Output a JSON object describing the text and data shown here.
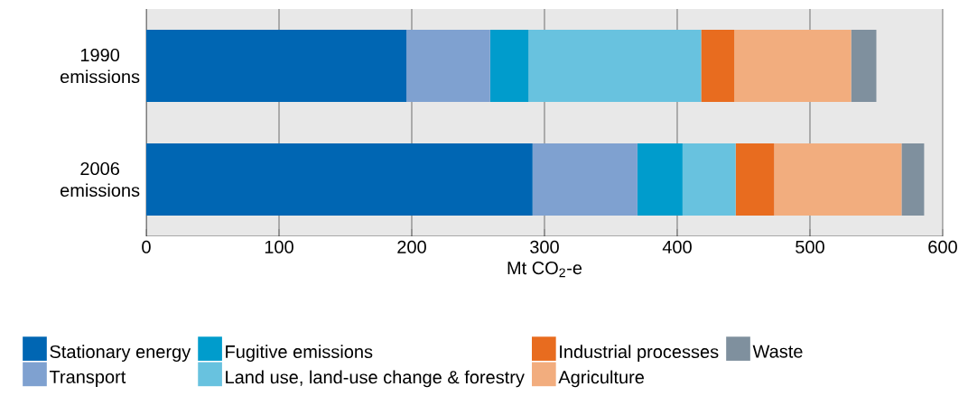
{
  "chart_data": {
    "type": "bar",
    "orientation": "horizontal",
    "stacked": true,
    "categories": [
      "1990 emissions",
      "2006 emissions"
    ],
    "series": [
      {
        "name": "Stationary energy",
        "color": "#0066b3",
        "values": [
          196,
          291
        ]
      },
      {
        "name": "Transport",
        "color": "#7fa1d0",
        "values": [
          63,
          79
        ]
      },
      {
        "name": "Fugitive emissions",
        "color": "#009ccc",
        "values": [
          29,
          34
        ]
      },
      {
        "name": "Land use, land-use change & forestry",
        "color": "#68c2df",
        "values": [
          130,
          40
        ]
      },
      {
        "name": "Industrial processes",
        "color": "#e86c1f",
        "values": [
          25,
          29
        ]
      },
      {
        "name": "Agriculture",
        "color": "#f2ad7e",
        "values": [
          88,
          96
        ]
      },
      {
        "name": "Waste",
        "color": "#7f909e",
        "values": [
          19,
          17
        ]
      }
    ],
    "xlabel": "Mt CO$_{2}$-e",
    "xlim": [
      0,
      600
    ],
    "xticks": [
      0,
      100,
      200,
      300,
      400,
      500,
      600
    ],
    "grid": "x",
    "legend": "bottom"
  }
}
